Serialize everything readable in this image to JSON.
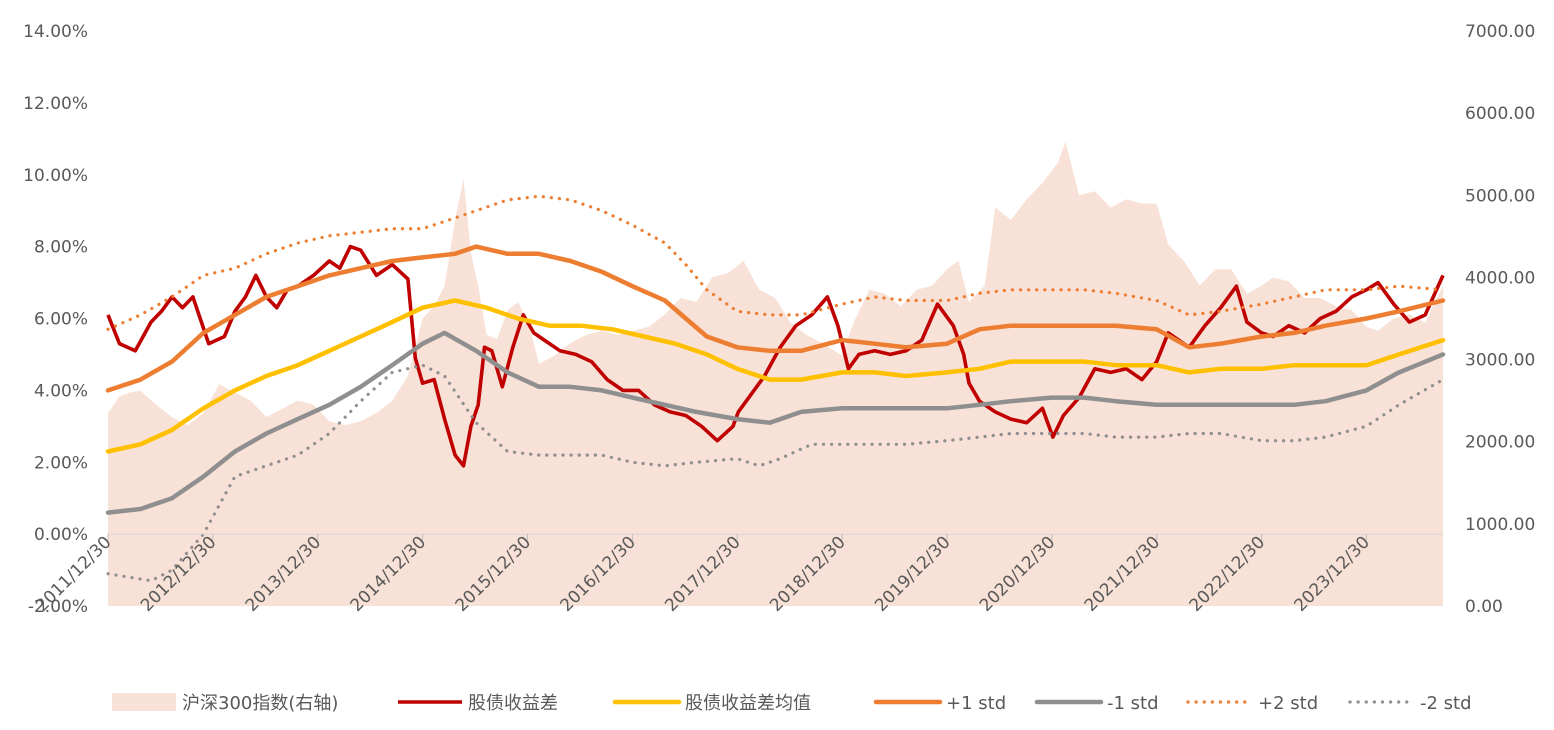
{
  "chart_data": {
    "type": "line",
    "left_axis": {
      "ticks": [
        "14.00%",
        "12.00%",
        "10.00%",
        "8.00%",
        "6.00%",
        "4.00%",
        "2.00%",
        "0.00%",
        "-2.00%"
      ],
      "range": [
        -2,
        14
      ],
      "unit": "%"
    },
    "right_axis": {
      "ticks": [
        "7000.00",
        "6000.00",
        "5000.00",
        "4000.00",
        "3000.00",
        "2000.00",
        "1000.00",
        "0.00"
      ],
      "range": [
        0,
        7000
      ]
    },
    "x_ticks": [
      "2011/12/30",
      "2012/12/30",
      "2013/12/30",
      "2014/12/30",
      "2015/12/30",
      "2016/12/30",
      "2017/12/30",
      "2018/12/30",
      "2019/12/30",
      "2020/12/30",
      "2021/12/30",
      "2022/12/30",
      "2023/12/30"
    ],
    "x_range": [
      2011.99,
      2024.72
    ],
    "legend_position": "bottom",
    "grid": false,
    "series": [
      {
        "name": "沪深300指数(右轴)",
        "kind": "area",
        "axis": "right",
        "color": "#f8e1d6",
        "x": [
          2011.99,
          2012.1,
          2012.2,
          2012.3,
          2012.45,
          2012.6,
          2012.75,
          2012.9,
          2013.05,
          2013.2,
          2013.35,
          2013.5,
          2013.65,
          2013.8,
          2013.95,
          2014.1,
          2014.25,
          2014.4,
          2014.55,
          2014.7,
          2014.85,
          2014.99,
          2015.1,
          2015.2,
          2015.3,
          2015.38,
          2015.45,
          2015.52,
          2015.6,
          2015.7,
          2015.8,
          2015.9,
          2016.0,
          2016.1,
          2016.25,
          2016.4,
          2016.55,
          2016.7,
          2016.85,
          2017.0,
          2017.15,
          2017.3,
          2017.45,
          2017.6,
          2017.75,
          2017.9,
          2018.05,
          2018.2,
          2018.35,
          2018.5,
          2018.65,
          2018.8,
          2018.99,
          2019.1,
          2019.25,
          2019.4,
          2019.55,
          2019.7,
          2019.85,
          2019.99,
          2020.1,
          2020.2,
          2020.35,
          2020.45,
          2020.6,
          2020.75,
          2020.9,
          2021.05,
          2021.12,
          2021.25,
          2021.4,
          2021.55,
          2021.7,
          2021.85,
          2021.99,
          2022.1,
          2022.25,
          2022.4,
          2022.55,
          2022.7,
          2022.85,
          2022.99,
          2023.1,
          2023.25,
          2023.4,
          2023.55,
          2023.7,
          2023.85,
          2023.99,
          2024.1,
          2024.25,
          2024.4,
          2024.55,
          2024.72
        ],
        "y": [
          2350,
          2550,
          2600,
          2620,
          2450,
          2300,
          2200,
          2350,
          2700,
          2600,
          2500,
          2300,
          2400,
          2500,
          2450,
          2250,
          2200,
          2250,
          2350,
          2500,
          2800,
          3500,
          3650,
          3900,
          4700,
          5200,
          4300,
          3900,
          3300,
          3250,
          3600,
          3700,
          3450,
          2950,
          3050,
          3200,
          3300,
          3350,
          3300,
          3350,
          3400,
          3550,
          3750,
          3700,
          4000,
          4050,
          4200,
          3850,
          3750,
          3450,
          3300,
          3200,
          3050,
          3450,
          3850,
          3800,
          3650,
          3850,
          3900,
          4100,
          4200,
          3700,
          3900,
          4850,
          4700,
          4950,
          5150,
          5400,
          5650,
          5000,
          5050,
          4850,
          4950,
          4900,
          4900,
          4400,
          4200,
          3900,
          4100,
          4100,
          3800,
          3900,
          4000,
          3950,
          3750,
          3750,
          3650,
          3600,
          3400,
          3350,
          3500,
          3550,
          3450,
          3900
        ]
      },
      {
        "name": "股债收益差",
        "kind": "line",
        "axis": "left",
        "color": "#c00000",
        "x": [
          2011.99,
          2012.1,
          2012.25,
          2012.4,
          2012.5,
          2012.6,
          2012.7,
          2012.8,
          2012.95,
          2013.1,
          2013.2,
          2013.3,
          2013.4,
          2013.5,
          2013.6,
          2013.7,
          2013.8,
          2013.95,
          2014.1,
          2014.2,
          2014.3,
          2014.4,
          2014.55,
          2014.7,
          2014.85,
          2014.92,
          2014.99,
          2015.1,
          2015.2,
          2015.3,
          2015.38,
          2015.45,
          2015.52,
          2015.58,
          2015.65,
          2015.75,
          2015.85,
          2015.95,
          2016.05,
          2016.15,
          2016.3,
          2016.45,
          2016.6,
          2016.75,
          2016.9,
          2017.05,
          2017.2,
          2017.35,
          2017.5,
          2017.65,
          2017.8,
          2017.95,
          2018.0,
          2018.1,
          2018.25,
          2018.4,
          2018.55,
          2018.7,
          2018.85,
          2018.95,
          2019.05,
          2019.15,
          2019.3,
          2019.45,
          2019.6,
          2019.75,
          2019.9,
          2020.05,
          2020.15,
          2020.2,
          2020.3,
          2020.45,
          2020.6,
          2020.75,
          2020.9,
          2021.0,
          2021.1,
          2021.25,
          2021.4,
          2021.55,
          2021.7,
          2021.85,
          2021.99,
          2022.1,
          2022.2,
          2022.3,
          2022.45,
          2022.6,
          2022.75,
          2022.85,
          2022.99,
          2023.1,
          2023.25,
          2023.4,
          2023.55,
          2023.7,
          2023.85,
          2023.99,
          2024.1,
          2024.25,
          2024.4,
          2024.55,
          2024.72
        ],
        "y": [
          6.1,
          5.3,
          5.1,
          5.9,
          6.2,
          6.6,
          6.3,
          6.6,
          5.3,
          5.5,
          6.2,
          6.6,
          7.2,
          6.6,
          6.3,
          6.8,
          6.9,
          7.2,
          7.6,
          7.4,
          8.0,
          7.9,
          7.2,
          7.5,
          7.1,
          4.9,
          4.2,
          4.3,
          3.2,
          2.2,
          1.9,
          3.0,
          3.6,
          5.2,
          5.1,
          4.1,
          5.2,
          6.1,
          5.6,
          5.4,
          5.1,
          5.0,
          4.8,
          4.3,
          4.0,
          4.0,
          3.6,
          3.4,
          3.3,
          3.0,
          2.6,
          3.0,
          3.4,
          3.8,
          4.4,
          5.2,
          5.8,
          6.1,
          6.6,
          5.8,
          4.6,
          5.0,
          5.1,
          5.0,
          5.1,
          5.4,
          6.4,
          5.8,
          5.0,
          4.2,
          3.7,
          3.4,
          3.2,
          3.1,
          3.5,
          2.7,
          3.3,
          3.8,
          4.6,
          4.5,
          4.6,
          4.3,
          4.8,
          5.6,
          5.4,
          5.2,
          5.8,
          6.3,
          6.9,
          5.9,
          5.6,
          5.5,
          5.8,
          5.6,
          6.0,
          6.2,
          6.6,
          6.8,
          7.0,
          6.4,
          5.9,
          6.1,
          7.2
        ]
      },
      {
        "name": "股债收益差均值",
        "kind": "line",
        "axis": "left",
        "color": "#ffc000",
        "x": [
          2011.99,
          2012.3,
          2012.6,
          2012.9,
          2013.2,
          2013.5,
          2013.8,
          2014.1,
          2014.4,
          2014.7,
          2014.99,
          2015.3,
          2015.6,
          2015.9,
          2016.2,
          2016.5,
          2016.8,
          2017.1,
          2017.4,
          2017.7,
          2017.99,
          2018.3,
          2018.6,
          2018.99,
          2019.3,
          2019.6,
          2019.99,
          2020.3,
          2020.6,
          2020.99,
          2021.3,
          2021.6,
          2021.99,
          2022.3,
          2022.6,
          2022.99,
          2023.3,
          2023.6,
          2023.99,
          2024.3,
          2024.72
        ],
        "y": [
          2.3,
          2.5,
          2.9,
          3.5,
          4.0,
          4.4,
          4.7,
          5.1,
          5.5,
          5.9,
          6.3,
          6.5,
          6.3,
          6.0,
          5.8,
          5.8,
          5.7,
          5.5,
          5.3,
          5.0,
          4.6,
          4.3,
          4.3,
          4.5,
          4.5,
          4.4,
          4.5,
          4.6,
          4.8,
          4.8,
          4.8,
          4.7,
          4.7,
          4.5,
          4.6,
          4.6,
          4.7,
          4.7,
          4.7,
          5.0,
          5.4
        ]
      },
      {
        "name": "+1 std",
        "kind": "line",
        "axis": "left",
        "color": "#ed7d31",
        "x": [
          2011.99,
          2012.3,
          2012.6,
          2012.9,
          2013.2,
          2013.5,
          2013.8,
          2014.1,
          2014.4,
          2014.7,
          2014.99,
          2015.3,
          2015.5,
          2015.8,
          2016.1,
          2016.4,
          2016.7,
          2016.99,
          2017.3,
          2017.5,
          2017.7,
          2017.99,
          2018.3,
          2018.6,
          2018.99,
          2019.3,
          2019.6,
          2019.99,
          2020.3,
          2020.6,
          2020.99,
          2021.3,
          2021.6,
          2021.99,
          2022.3,
          2022.6,
          2022.99,
          2023.3,
          2023.6,
          2023.99,
          2024.3,
          2024.72
        ],
        "y": [
          4.0,
          4.3,
          4.8,
          5.6,
          6.1,
          6.6,
          6.9,
          7.2,
          7.4,
          7.6,
          7.7,
          7.8,
          8.0,
          7.8,
          7.8,
          7.6,
          7.3,
          6.9,
          6.5,
          6.0,
          5.5,
          5.2,
          5.1,
          5.1,
          5.4,
          5.3,
          5.2,
          5.3,
          5.7,
          5.8,
          5.8,
          5.8,
          5.8,
          5.7,
          5.2,
          5.3,
          5.5,
          5.6,
          5.8,
          6.0,
          6.2,
          6.5
        ]
      },
      {
        "name": "-1 std",
        "kind": "line",
        "axis": "left",
        "color": "#8f8f8f",
        "x": [
          2011.99,
          2012.3,
          2012.6,
          2012.9,
          2013.2,
          2013.5,
          2013.8,
          2014.1,
          2014.4,
          2014.7,
          2014.99,
          2015.2,
          2015.5,
          2015.8,
          2016.1,
          2016.4,
          2016.7,
          2016.99,
          2017.3,
          2017.6,
          2017.99,
          2018.3,
          2018.6,
          2018.99,
          2019.3,
          2019.6,
          2019.99,
          2020.3,
          2020.6,
          2020.99,
          2021.3,
          2021.6,
          2021.99,
          2022.3,
          2022.6,
          2022.99,
          2023.3,
          2023.6,
          2023.99,
          2024.3,
          2024.72
        ],
        "y": [
          0.6,
          0.7,
          1.0,
          1.6,
          2.3,
          2.8,
          3.2,
          3.6,
          4.1,
          4.7,
          5.3,
          5.6,
          5.1,
          4.5,
          4.1,
          4.1,
          4.0,
          3.8,
          3.6,
          3.4,
          3.2,
          3.1,
          3.4,
          3.5,
          3.5,
          3.5,
          3.5,
          3.6,
          3.7,
          3.8,
          3.8,
          3.7,
          3.6,
          3.6,
          3.6,
          3.6,
          3.6,
          3.7,
          4.0,
          4.5,
          5.0
        ]
      },
      {
        "name": "+2 std",
        "kind": "dotted",
        "axis": "left",
        "color": "#ed7d31",
        "x": [
          2011.99,
          2012.3,
          2012.6,
          2012.9,
          2013.2,
          2013.5,
          2013.8,
          2014.1,
          2014.4,
          2014.7,
          2014.99,
          2015.3,
          2015.5,
          2015.8,
          2016.1,
          2016.4,
          2016.7,
          2016.99,
          2017.3,
          2017.5,
          2017.7,
          2017.99,
          2018.3,
          2018.6,
          2018.99,
          2019.3,
          2019.6,
          2019.99,
          2020.3,
          2020.6,
          2020.99,
          2021.3,
          2021.6,
          2021.99,
          2022.3,
          2022.6,
          2022.99,
          2023.3,
          2023.6,
          2023.99,
          2024.3,
          2024.72
        ],
        "y": [
          5.7,
          6.1,
          6.6,
          7.2,
          7.4,
          7.8,
          8.1,
          8.3,
          8.4,
          8.5,
          8.5,
          8.8,
          9.0,
          9.3,
          9.4,
          9.3,
          9.0,
          8.6,
          8.1,
          7.5,
          6.8,
          6.2,
          6.1,
          6.1,
          6.4,
          6.6,
          6.5,
          6.5,
          6.7,
          6.8,
          6.8,
          6.8,
          6.7,
          6.5,
          6.1,
          6.2,
          6.4,
          6.6,
          6.8,
          6.8,
          6.9,
          6.8
        ]
      },
      {
        "name": "-2 std",
        "kind": "dotted",
        "axis": "left",
        "color": "#8f8f8f",
        "x": [
          2011.99,
          2012.2,
          2012.4,
          2012.6,
          2012.9,
          2013.2,
          2013.5,
          2013.8,
          2014.1,
          2014.4,
          2014.7,
          2014.99,
          2015.2,
          2015.5,
          2015.8,
          2016.1,
          2016.4,
          2016.7,
          2016.99,
          2017.3,
          2017.6,
          2017.99,
          2018.2,
          2018.4,
          2018.7,
          2018.99,
          2019.3,
          2019.6,
          2019.99,
          2020.3,
          2020.6,
          2020.99,
          2021.3,
          2021.6,
          2021.99,
          2022.3,
          2022.6,
          2022.99,
          2023.3,
          2023.6,
          2023.99,
          2024.3,
          2024.72
        ],
        "y": [
          -1.1,
          -1.2,
          -1.3,
          -1.0,
          0.0,
          1.6,
          1.9,
          2.2,
          2.8,
          3.7,
          4.5,
          4.7,
          4.4,
          3.1,
          2.3,
          2.2,
          2.2,
          2.2,
          2.0,
          1.9,
          2.0,
          2.1,
          1.9,
          2.1,
          2.5,
          2.5,
          2.5,
          2.5,
          2.6,
          2.7,
          2.8,
          2.8,
          2.8,
          2.7,
          2.7,
          2.8,
          2.8,
          2.6,
          2.6,
          2.7,
          3.0,
          3.6,
          4.3
        ]
      }
    ]
  }
}
